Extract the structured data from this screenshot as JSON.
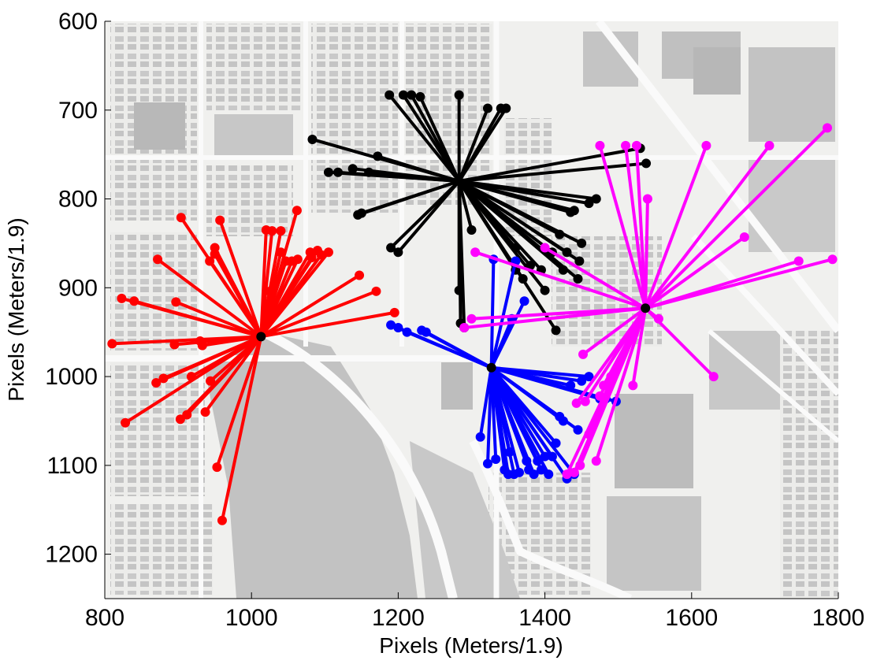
{
  "chart_data": {
    "type": "scatter",
    "title": "",
    "xlabel": "Pixels (Meters/1.9)",
    "ylabel": "Pixels (Meters/1.9)",
    "xlim": [
      800,
      1800
    ],
    "ylim": [
      600,
      1250
    ],
    "y_reversed": true,
    "xticks": [
      800,
      1000,
      1200,
      1400,
      1600,
      1800
    ],
    "yticks": [
      600,
      700,
      800,
      900,
      1000,
      1100,
      1200
    ],
    "grid": false,
    "background": "aerial map image (grayscale city blocks)",
    "clusters": [
      {
        "name": "red",
        "color": "#ff0000",
        "center": [
          1013,
          955
        ],
        "points": [
          [
            810,
            963
          ],
          [
            828,
            1052
          ],
          [
            823,
            912
          ],
          [
            840,
            915
          ],
          [
            872,
            868
          ],
          [
            870,
            1007
          ],
          [
            880,
            1002
          ],
          [
            895,
            964
          ],
          [
            897,
            916
          ],
          [
            904,
            821
          ],
          [
            903,
            1048
          ],
          [
            912,
            1043
          ],
          [
            918,
            1000
          ],
          [
            930,
            960
          ],
          [
            933,
            965
          ],
          [
            937,
            1040
          ],
          [
            943,
            870
          ],
          [
            944,
            1005
          ],
          [
            950,
            855
          ],
          [
            950,
            862
          ],
          [
            953,
            1102
          ],
          [
            957,
            824
          ],
          [
            960,
            1162
          ],
          [
            1020,
            835
          ],
          [
            1025,
            904
          ],
          [
            1028,
            836
          ],
          [
            1040,
            836
          ],
          [
            1040,
            860
          ],
          [
            1047,
            870
          ],
          [
            1055,
            870
          ],
          [
            1062,
            813
          ],
          [
            1063,
            868
          ],
          [
            1080,
            860
          ],
          [
            1082,
            866
          ],
          [
            1090,
            858
          ],
          [
            1095,
            863
          ],
          [
            1105,
            860
          ],
          [
            1147,
            886
          ],
          [
            1170,
            904
          ],
          [
            1195,
            928
          ]
        ]
      },
      {
        "name": "black",
        "color": "#000000",
        "center": [
          1283,
          780
        ],
        "points": [
          [
            1083,
            733
          ],
          [
            1105,
            770
          ],
          [
            1118,
            770
          ],
          [
            1138,
            766
          ],
          [
            1145,
            818
          ],
          [
            1150,
            816
          ],
          [
            1160,
            770
          ],
          [
            1172,
            752
          ],
          [
            1188,
            683
          ],
          [
            1190,
            855
          ],
          [
            1200,
            860
          ],
          [
            1207,
            683
          ],
          [
            1218,
            683
          ],
          [
            1230,
            685
          ],
          [
            1283,
            683
          ],
          [
            1283,
            903
          ],
          [
            1285,
            940
          ],
          [
            1290,
            945
          ],
          [
            1300,
            835
          ],
          [
            1322,
            698
          ],
          [
            1340,
            698
          ],
          [
            1347,
            698
          ],
          [
            1360,
            855
          ],
          [
            1360,
            880
          ],
          [
            1370,
            890
          ],
          [
            1380,
            875
          ],
          [
            1395,
            880
          ],
          [
            1400,
            903
          ],
          [
            1410,
            860
          ],
          [
            1415,
            948
          ],
          [
            1420,
            840
          ],
          [
            1425,
            880
          ],
          [
            1430,
            860
          ],
          [
            1435,
            815
          ],
          [
            1440,
            813
          ],
          [
            1445,
            890
          ],
          [
            1447,
            870
          ],
          [
            1450,
            850
          ],
          [
            1460,
            805
          ],
          [
            1470,
            800
          ],
          [
            1530,
            743
          ],
          [
            1538,
            760
          ]
        ]
      },
      {
        "name": "blue",
        "color": "#0000ff",
        "center": [
          1327,
          990
        ],
        "points": [
          [
            1190,
            942
          ],
          [
            1200,
            945
          ],
          [
            1212,
            950
          ],
          [
            1232,
            948
          ],
          [
            1238,
            950
          ],
          [
            1312,
            1068
          ],
          [
            1322,
            1098
          ],
          [
            1330,
            868
          ],
          [
            1333,
            1093
          ],
          [
            1345,
            1105
          ],
          [
            1350,
            1110
          ],
          [
            1352,
            1085
          ],
          [
            1355,
            935
          ],
          [
            1358,
            1110
          ],
          [
            1360,
            870
          ],
          [
            1365,
            1108
          ],
          [
            1372,
            915
          ],
          [
            1375,
            1095
          ],
          [
            1378,
            1105
          ],
          [
            1385,
            1110
          ],
          [
            1390,
            1095
          ],
          [
            1395,
            1105
          ],
          [
            1400,
            1090
          ],
          [
            1405,
            1110
          ],
          [
            1410,
            1090
          ],
          [
            1415,
            1075
          ],
          [
            1420,
            1045
          ],
          [
            1425,
            1050
          ],
          [
            1430,
            1115
          ],
          [
            1435,
            1010
          ],
          [
            1440,
            1110
          ],
          [
            1445,
            1060
          ],
          [
            1450,
            1005
          ],
          [
            1460,
            1000
          ],
          [
            1475,
            1025
          ],
          [
            1483,
            1025
          ],
          [
            1497,
            1028
          ]
        ]
      },
      {
        "name": "magenta",
        "color": "#ff00ff",
        "center": [
          1537,
          923
        ],
        "points": [
          [
            1290,
            945
          ],
          [
            1300,
            935
          ],
          [
            1305,
            860
          ],
          [
            1400,
            855
          ],
          [
            1430,
            1110
          ],
          [
            1440,
            1108
          ],
          [
            1443,
            1030
          ],
          [
            1448,
            1100
          ],
          [
            1452,
            975
          ],
          [
            1455,
            1028
          ],
          [
            1460,
            1065
          ],
          [
            1470,
            1095
          ],
          [
            1475,
            1022
          ],
          [
            1475,
            740
          ],
          [
            1480,
            1010
          ],
          [
            1490,
            1000
          ],
          [
            1510,
            740
          ],
          [
            1520,
            1010
          ],
          [
            1525,
            740
          ],
          [
            1540,
            800
          ],
          [
            1555,
            935
          ],
          [
            1620,
            740
          ],
          [
            1630,
            1000
          ],
          [
            1672,
            843
          ],
          [
            1706,
            740
          ],
          [
            1746,
            870
          ],
          [
            1785,
            720
          ],
          [
            1792,
            868
          ]
        ]
      }
    ]
  }
}
